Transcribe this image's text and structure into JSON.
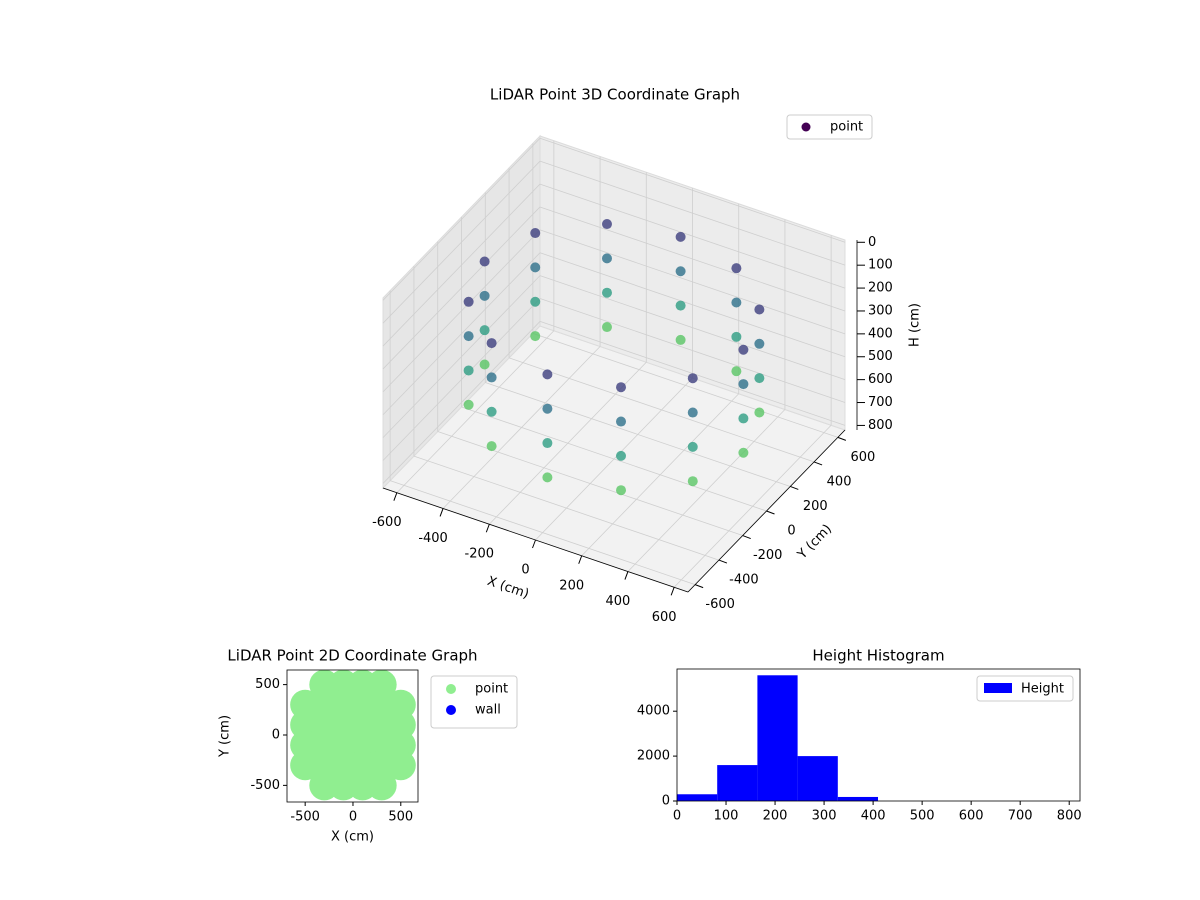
{
  "chart_data": [
    {
      "type": "scatter3d",
      "title": "LiDAR Point 3D Coordinate Graph",
      "xlabel": "X (cm)",
      "ylabel": "Y (cm)",
      "zlabel": "H (cm)",
      "xlim": [
        -660,
        660
      ],
      "ylim": [
        -660,
        660
      ],
      "zlim": [
        820,
        -10
      ],
      "xticks": [
        -600,
        -400,
        -200,
        0,
        200,
        400,
        600
      ],
      "yticks": [
        -600,
        -400,
        -200,
        0,
        200,
        400,
        600
      ],
      "zticks": [
        0,
        100,
        200,
        300,
        400,
        500,
        600,
        700,
        800
      ],
      "colormap": "viridis",
      "grid": true,
      "legend": "upper right",
      "series": [
        {
          "name": "point",
          "x": [
            560,
            485,
            280,
            0,
            -280,
            -485,
            -560,
            -485,
            -280,
            0,
            280,
            485,
            560,
            485,
            280,
            0,
            -280,
            -485,
            -560,
            -485,
            -280,
            0,
            280,
            485,
            560,
            485,
            280,
            0,
            -280,
            -485,
            -560,
            -485,
            -280,
            0,
            280,
            485,
            560,
            485,
            280,
            0,
            -280,
            -485,
            -560,
            -485,
            -280,
            0,
            280,
            485
          ],
          "y": [
            0,
            280,
            485,
            560,
            485,
            280,
            0,
            -280,
            -485,
            -560,
            -485,
            -280,
            0,
            280,
            485,
            560,
            485,
            280,
            0,
            -280,
            -485,
            -560,
            -485,
            -280,
            0,
            280,
            485,
            560,
            485,
            280,
            0,
            -280,
            -485,
            -560,
            -485,
            -280,
            0,
            280,
            485,
            560,
            485,
            280,
            0,
            -280,
            -485,
            -560,
            -485,
            -280
          ],
          "z": [
            150,
            150,
            150,
            150,
            150,
            150,
            150,
            150,
            150,
            150,
            150,
            150,
            300,
            300,
            300,
            300,
            300,
            300,
            300,
            300,
            300,
            300,
            300,
            300,
            450,
            450,
            450,
            450,
            450,
            450,
            450,
            450,
            450,
            450,
            450,
            450,
            600,
            600,
            600,
            600,
            600,
            600,
            600,
            600,
            600,
            600,
            600,
            600
          ]
        }
      ]
    },
    {
      "type": "scatter",
      "title": "LiDAR Point 2D Coordinate Graph",
      "xlabel": "X (cm)",
      "ylabel": "Y (cm)",
      "xlim": [
        -690,
        680
      ],
      "ylim": [
        -665,
        645
      ],
      "xticks": [
        -500,
        0,
        500
      ],
      "yticks": [
        -500,
        0,
        500
      ],
      "legend": "outside right",
      "series": [
        {
          "name": "point",
          "color": "#90ee90",
          "x": [
            -300,
            -100,
            100,
            300,
            -500,
            -300,
            -100,
            100,
            300,
            500,
            -500,
            -300,
            -100,
            100,
            300,
            500,
            -500,
            -300,
            -100,
            100,
            300,
            500,
            -500,
            -300,
            -100,
            100,
            300,
            500,
            -300,
            -100,
            100,
            300
          ],
          "y": [
            500,
            500,
            500,
            500,
            300,
            300,
            300,
            300,
            300,
            300,
            100,
            100,
            100,
            100,
            100,
            100,
            -100,
            -100,
            -100,
            -100,
            -100,
            -100,
            -300,
            -300,
            -300,
            -300,
            -300,
            -300,
            -500,
            -500,
            -500,
            -500
          ]
        },
        {
          "name": "wall",
          "color": "#0000ff",
          "x": [],
          "y": []
        }
      ]
    },
    {
      "type": "histogram",
      "title": "Height Histogram",
      "bins": [
        0,
        82,
        164,
        246,
        328,
        410,
        492,
        574,
        656,
        738,
        820
      ],
      "values": [
        300,
        1600,
        5600,
        2000,
        180,
        0,
        0,
        0,
        0,
        0
      ],
      "name": "Height",
      "color": "#0000ff",
      "legend": "upper right",
      "xlim": [
        0,
        822
      ],
      "ylim": [
        0,
        5880
      ],
      "xticks": [
        0,
        100,
        200,
        300,
        400,
        500,
        600,
        700,
        800
      ],
      "yticks": [
        0,
        2000,
        4000
      ]
    }
  ]
}
